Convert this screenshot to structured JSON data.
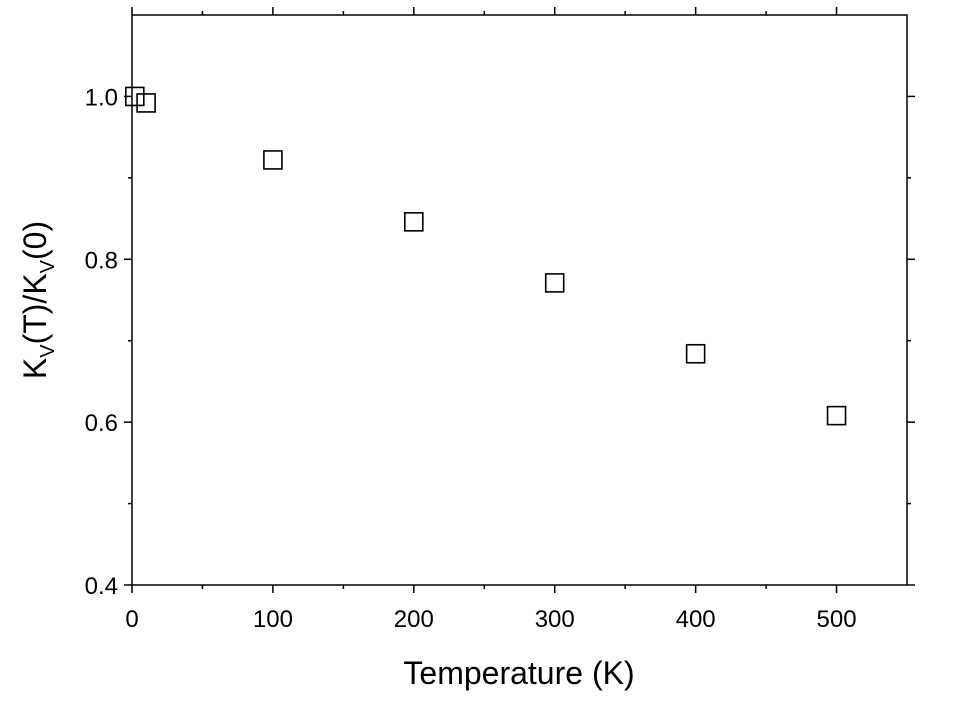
{
  "chart_data": {
    "type": "scatter",
    "title": "",
    "xlabel": "Temperature (K)",
    "ylabel": {
      "parts": [
        "K",
        "V",
        "(T)/K",
        "V",
        "(0)"
      ]
    },
    "xlim": [
      0,
      550
    ],
    "ylim": [
      0.4,
      1.1
    ],
    "x_ticks": [
      0,
      100,
      200,
      300,
      400,
      500
    ],
    "x_tick_labels": [
      "0",
      "100",
      "200",
      "300",
      "400",
      "500"
    ],
    "y_ticks": [
      0.4,
      0.6,
      0.8,
      1.0
    ],
    "y_tick_labels": [
      "0.4",
      "0.6",
      "0.8",
      "1.0"
    ],
    "grid": false,
    "legend": "none",
    "marker": "open-square",
    "colors": {
      "marker": "#000000",
      "axis": "#000000"
    },
    "series": [
      {
        "x": [
          2,
          10,
          100,
          200,
          300,
          400,
          500
        ],
        "y": [
          1.0,
          0.992,
          0.922,
          0.846,
          0.771,
          0.684,
          0.608
        ]
      }
    ]
  }
}
